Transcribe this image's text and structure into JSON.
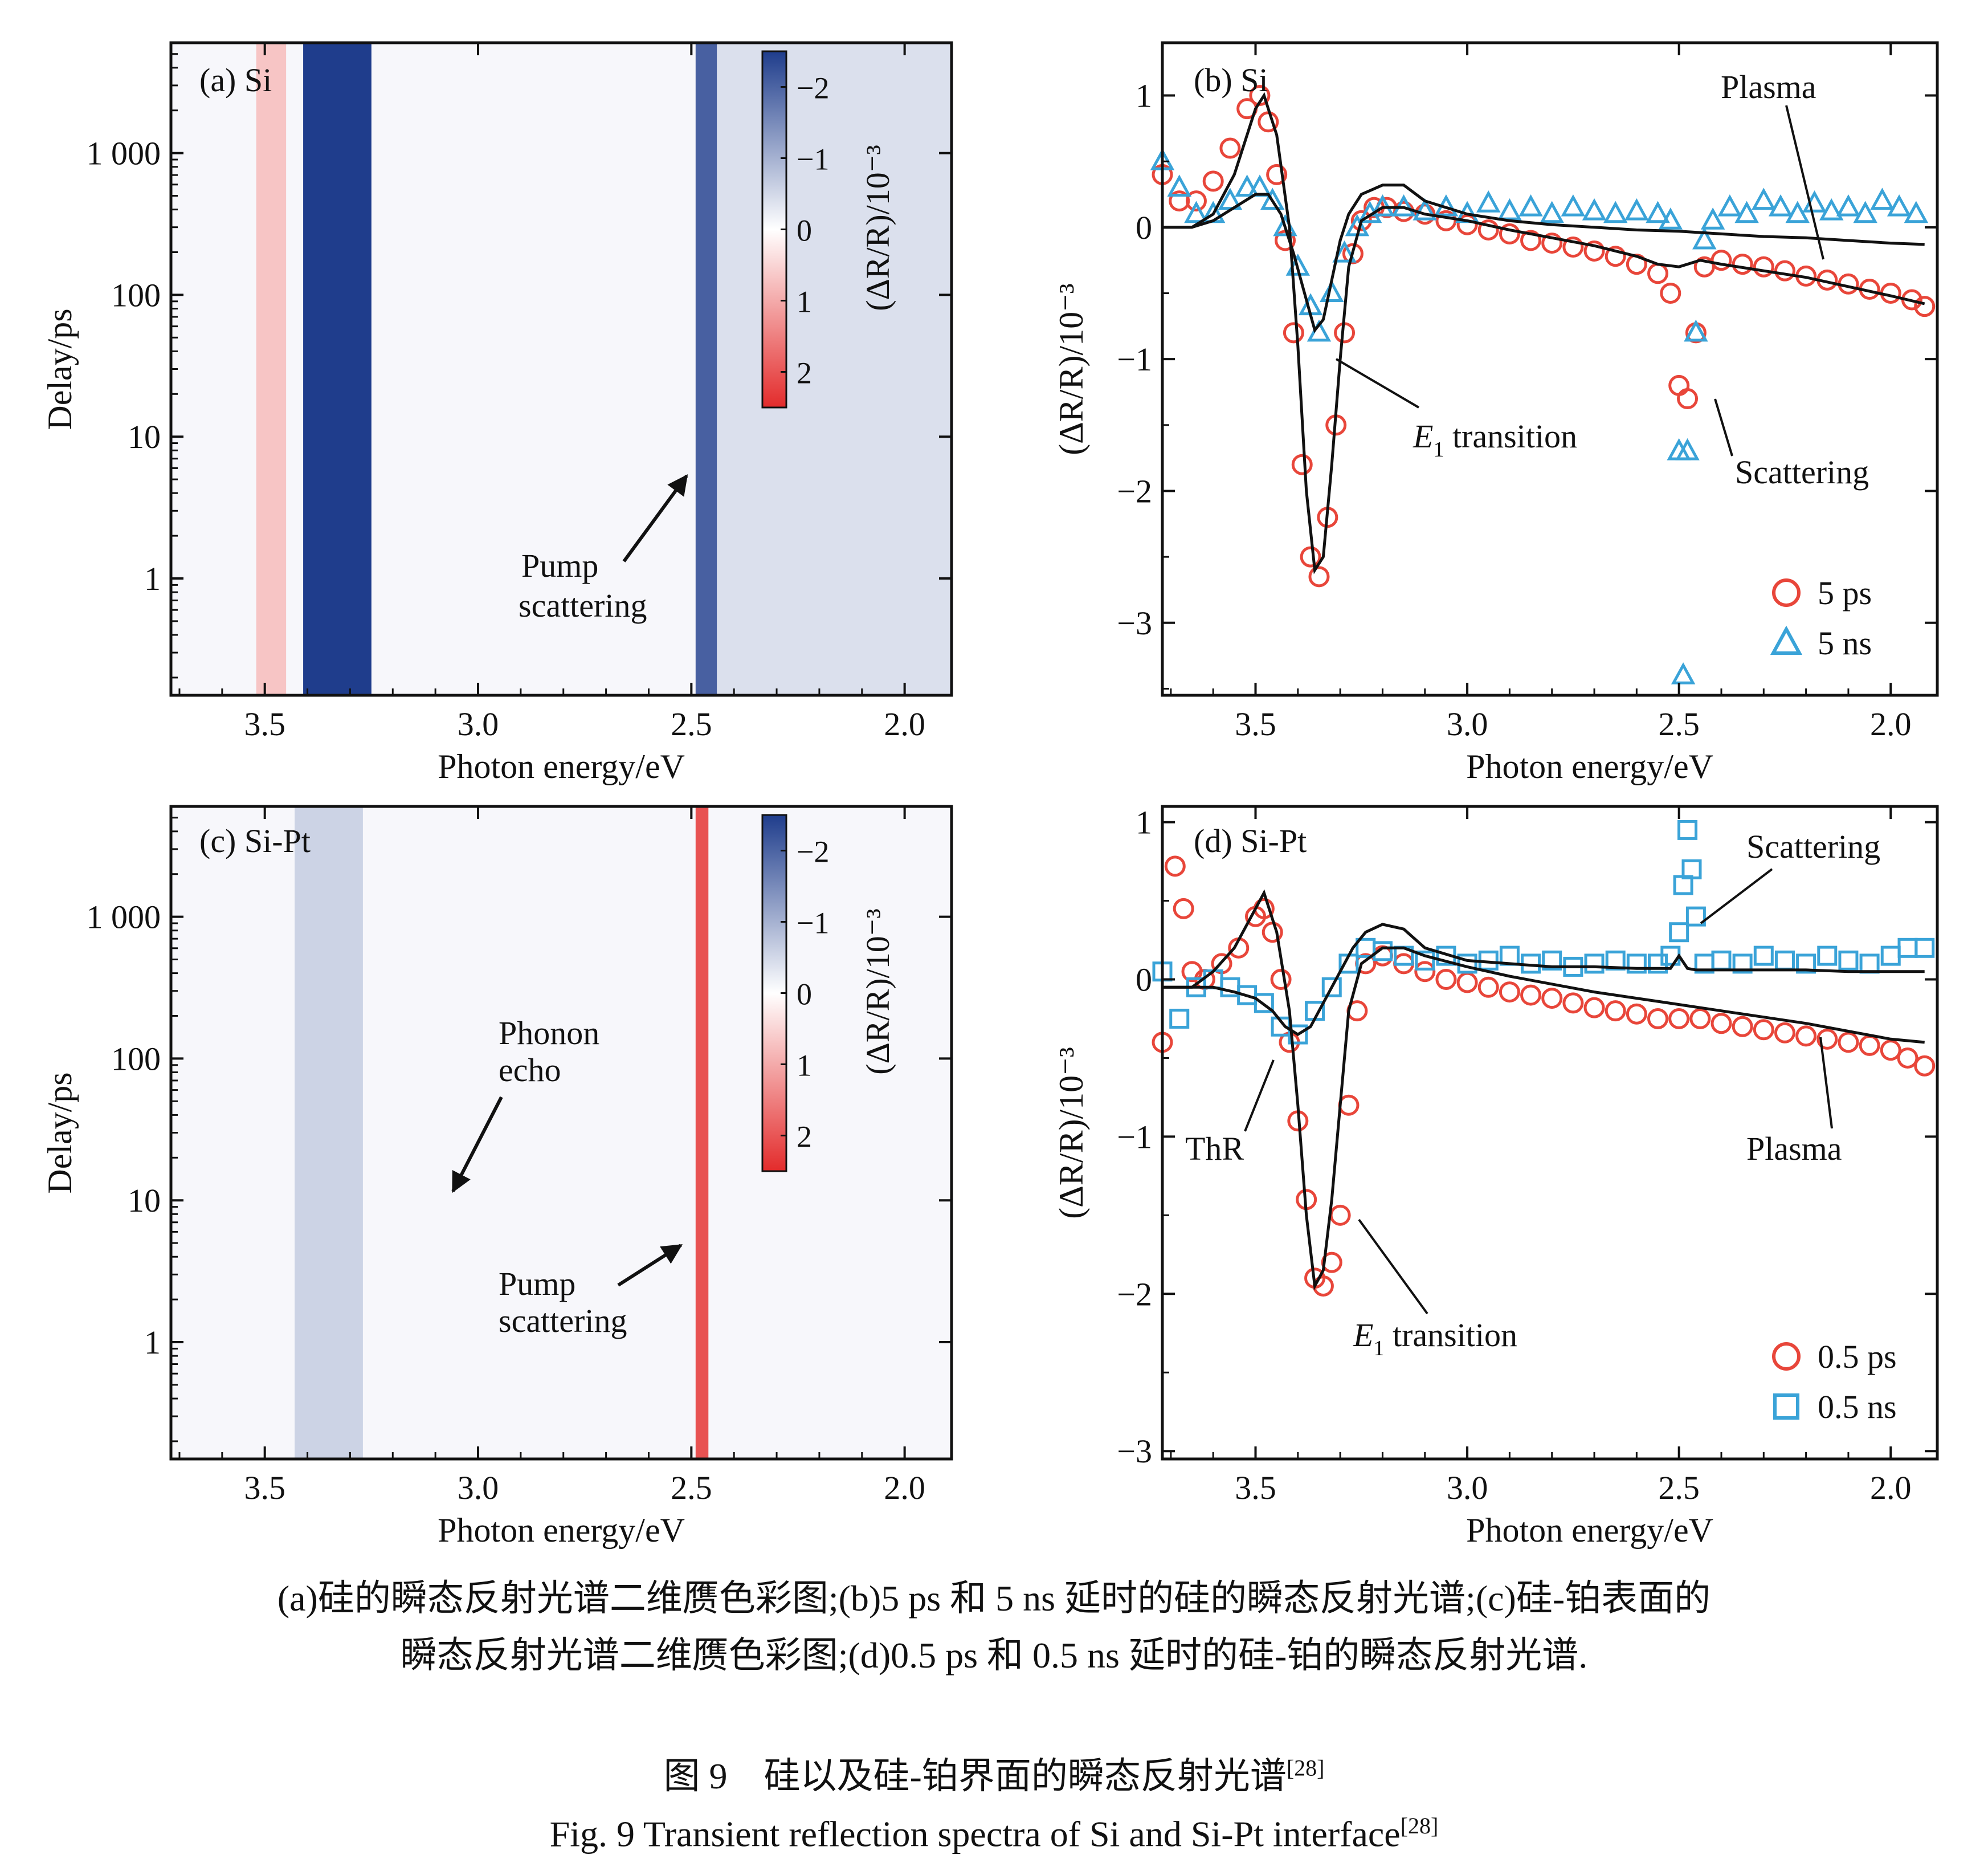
{
  "chart_data": [
    {
      "id": "a",
      "type": "heatmap",
      "panel_label": "(a) Si",
      "xlabel": "Photon energy/eV",
      "ylabel": "Delay/ps",
      "xlim": [
        3.72,
        1.89
      ],
      "x_reversed": true,
      "ylim": [
        0.15,
        6000
      ],
      "y_scale": "log",
      "x_ticks": [
        "3.5",
        "3.0",
        "2.5",
        "2.0"
      ],
      "x_tick_values": [
        3.5,
        3.0,
        2.5,
        2.0
      ],
      "y_ticks": [
        "1",
        "10",
        "100",
        "1 000"
      ],
      "y_tick_values": [
        1,
        10,
        100,
        1000
      ],
      "colorbar": {
        "label": "(ΔR/R)/10⁻³",
        "tick_labels": [
          "−2",
          "−1",
          "0",
          "1",
          "2"
        ],
        "tick_values": [
          -2,
          -1,
          0,
          1,
          2
        ],
        "negative_color": "#1f3d8c",
        "positive_color": "#e32b2b"
      },
      "bands": [
        {
          "x_from": 3.52,
          "x_to": 3.45,
          "value": 0.6
        },
        {
          "x_from": 3.41,
          "x_to": 3.25,
          "value": -2.2
        },
        {
          "x_from": 2.49,
          "x_to": 2.44,
          "value": -1.8
        },
        {
          "x_from": 2.44,
          "x_to": 1.89,
          "value": -0.35
        }
      ],
      "annotations": [
        {
          "text": "Pump",
          "text2": "scattering"
        }
      ]
    },
    {
      "id": "b",
      "type": "scatter",
      "panel_label": "(b) Si",
      "xlabel": "Photon energy/eV",
      "ylabel": "(ΔR/R)/10⁻³",
      "xlim": [
        3.72,
        1.89
      ],
      "x_reversed": true,
      "ylim": [
        -3.55,
        1.4
      ],
      "x_ticks": [
        "3.5",
        "3.0",
        "2.5",
        "2.0"
      ],
      "x_tick_values": [
        3.5,
        3.0,
        2.5,
        2.0
      ],
      "y_ticks": [
        "1",
        "0",
        "−1",
        "−2",
        "−3"
      ],
      "y_tick_values": [
        1,
        0,
        -1,
        -2,
        -3
      ],
      "legend_position": "bottom-right",
      "series": [
        {
          "name": "5 ps",
          "marker": "circle",
          "color": "#e8463a",
          "x": [
            3.72,
            3.68,
            3.64,
            3.6,
            3.56,
            3.52,
            3.49,
            3.47,
            3.45,
            3.43,
            3.41,
            3.39,
            3.37,
            3.35,
            3.33,
            3.31,
            3.29,
            3.27,
            3.25,
            3.22,
            3.19,
            3.15,
            3.1,
            3.05,
            3.0,
            2.95,
            2.9,
            2.85,
            2.8,
            2.75,
            2.7,
            2.65,
            2.6,
            2.55,
            2.52,
            2.5,
            2.48,
            2.46,
            2.44,
            2.4,
            2.35,
            2.3,
            2.25,
            2.2,
            2.15,
            2.1,
            2.05,
            2.0,
            1.95,
            1.92
          ],
          "y": [
            0.4,
            0.2,
            0.2,
            0.35,
            0.6,
            0.9,
            1.0,
            0.8,
            0.4,
            -0.1,
            -0.8,
            -1.8,
            -2.5,
            -2.65,
            -2.2,
            -1.5,
            -0.8,
            -0.2,
            0.05,
            0.15,
            0.15,
            0.12,
            0.1,
            0.05,
            0.02,
            -0.02,
            -0.05,
            -0.1,
            -0.12,
            -0.15,
            -0.18,
            -0.22,
            -0.28,
            -0.35,
            -0.5,
            -1.2,
            -1.3,
            -0.8,
            -0.3,
            -0.25,
            -0.28,
            -0.3,
            -0.33,
            -0.37,
            -0.4,
            -0.43,
            -0.47,
            -0.5,
            -0.55,
            -0.6
          ]
        },
        {
          "name": "5 ns",
          "marker": "triangle",
          "color": "#3aa3d8",
          "x": [
            3.72,
            3.68,
            3.64,
            3.6,
            3.56,
            3.52,
            3.49,
            3.46,
            3.43,
            3.4,
            3.37,
            3.35,
            3.32,
            3.29,
            3.26,
            3.23,
            3.2,
            3.15,
            3.1,
            3.05,
            3.0,
            2.95,
            2.9,
            2.85,
            2.8,
            2.75,
            2.7,
            2.65,
            2.6,
            2.55,
            2.52,
            2.5,
            2.49,
            2.48,
            2.46,
            2.44,
            2.42,
            2.38,
            2.34,
            2.3,
            2.26,
            2.22,
            2.18,
            2.14,
            2.1,
            2.06,
            2.02,
            1.98,
            1.94
          ],
          "y": [
            0.5,
            0.3,
            0.1,
            0.1,
            0.2,
            0.3,
            0.3,
            0.2,
            0.0,
            -0.3,
            -0.6,
            -0.8,
            -0.5,
            -0.2,
            0.0,
            0.1,
            0.15,
            0.15,
            0.12,
            0.15,
            0.1,
            0.18,
            0.12,
            0.15,
            0.1,
            0.15,
            0.12,
            0.1,
            0.12,
            0.1,
            0.05,
            -1.7,
            -3.4,
            -1.7,
            -0.8,
            -0.1,
            0.05,
            0.15,
            0.1,
            0.2,
            0.15,
            0.1,
            0.18,
            0.12,
            0.15,
            0.1,
            0.2,
            0.15,
            0.1
          ]
        },
        {
          "name": "",
          "type": "line",
          "color": "#111",
          "x": [
            3.72,
            3.65,
            3.6,
            3.55,
            3.5,
            3.48,
            3.45,
            3.42,
            3.4,
            3.38,
            3.36,
            3.34,
            3.32,
            3.3,
            3.28,
            3.25,
            3.2,
            3.15,
            3.1,
            3.0,
            2.9,
            2.8,
            2.7,
            2.6,
            2.55,
            2.5,
            2.45,
            2.4,
            2.3,
            2.2,
            2.1,
            2.0,
            1.92
          ],
          "y": [
            0.0,
            0.0,
            0.1,
            0.4,
            0.9,
            1.0,
            0.7,
            0.0,
            -0.9,
            -2.0,
            -2.6,
            -2.5,
            -1.8,
            -1.0,
            -0.3,
            0.05,
            0.15,
            0.15,
            0.1,
            0.05,
            -0.02,
            -0.08,
            -0.14,
            -0.22,
            -0.28,
            -0.3,
            -0.25,
            -0.28,
            -0.33,
            -0.38,
            -0.45,
            -0.52,
            -0.58
          ]
        },
        {
          "name": "",
          "type": "line",
          "color": "#111",
          "x": [
            3.72,
            3.65,
            3.6,
            3.55,
            3.5,
            3.47,
            3.44,
            3.41,
            3.38,
            3.36,
            3.34,
            3.32,
            3.3,
            3.28,
            3.25,
            3.2,
            3.15,
            3.1,
            3.0,
            2.9,
            2.8,
            2.7,
            2.6,
            2.5,
            2.4,
            2.3,
            2.2,
            2.1,
            2.0,
            1.92
          ],
          "y": [
            0.0,
            0.0,
            0.05,
            0.15,
            0.25,
            0.25,
            0.1,
            -0.2,
            -0.55,
            -0.78,
            -0.7,
            -0.4,
            -0.1,
            0.1,
            0.25,
            0.32,
            0.32,
            0.2,
            0.1,
            0.05,
            0.02,
            0.0,
            -0.02,
            -0.03,
            -0.05,
            -0.07,
            -0.08,
            -0.1,
            -0.12,
            -0.13
          ]
        }
      ],
      "annotations": [
        {
          "text": "Plasma"
        },
        {
          "text": "E",
          "sub": "1",
          "text2": " transition"
        },
        {
          "text": "Scattering"
        }
      ]
    },
    {
      "id": "c",
      "type": "heatmap",
      "panel_label": "(c) Si-Pt",
      "xlabel": "Photon energy/eV",
      "ylabel": "Delay/ps",
      "xlim": [
        3.72,
        1.89
      ],
      "x_reversed": true,
      "ylim": [
        0.15,
        6000
      ],
      "y_scale": "log",
      "x_ticks": [
        "3.5",
        "3.0",
        "2.5",
        "2.0"
      ],
      "x_tick_values": [
        3.5,
        3.0,
        2.5,
        2.0
      ],
      "y_ticks": [
        "1",
        "10",
        "100",
        "1 000"
      ],
      "y_tick_values": [
        1,
        10,
        100,
        1000
      ],
      "colorbar": {
        "label": "(ΔR/R)/10⁻³",
        "tick_labels": [
          "−2",
          "−1",
          "0",
          "1",
          "2"
        ],
        "tick_values": [
          -2,
          -1,
          0,
          1,
          2
        ],
        "negative_color": "#1f3d8c",
        "positive_color": "#e32b2b"
      },
      "bands": [
        {
          "x_from": 3.43,
          "x_to": 3.27,
          "value": -0.5
        },
        {
          "x_from": 2.49,
          "x_to": 2.46,
          "value": 1.8
        }
      ],
      "annotations": [
        {
          "text": "Phonon",
          "text2": "echo"
        },
        {
          "text": "Pump",
          "text2": "scattering"
        }
      ]
    },
    {
      "id": "d",
      "type": "scatter",
      "panel_label": "(d) Si-Pt",
      "xlabel": "Photon energy/eV",
      "ylabel": "(ΔR/R)/10⁻³",
      "xlim": [
        3.72,
        1.89
      ],
      "x_reversed": true,
      "ylim": [
        -3.05,
        1.1
      ],
      "x_ticks": [
        "3.5",
        "3.0",
        "2.5",
        "2.0"
      ],
      "x_tick_values": [
        3.5,
        3.0,
        2.5,
        2.0
      ],
      "y_ticks": [
        "1",
        "0",
        "−1",
        "−2",
        "−3"
      ],
      "y_tick_values": [
        1,
        0,
        -1,
        -2,
        -3
      ],
      "legend_position": "bottom-right",
      "series": [
        {
          "name": "0.5 ps",
          "marker": "circle",
          "color": "#e8463a",
          "x": [
            3.72,
            3.69,
            3.67,
            3.65,
            3.62,
            3.58,
            3.54,
            3.5,
            3.48,
            3.46,
            3.44,
            3.42,
            3.4,
            3.38,
            3.36,
            3.34,
            3.32,
            3.3,
            3.28,
            3.26,
            3.24,
            3.2,
            3.15,
            3.1,
            3.05,
            3.0,
            2.95,
            2.9,
            2.85,
            2.8,
            2.75,
            2.7,
            2.65,
            2.6,
            2.55,
            2.5,
            2.45,
            2.4,
            2.35,
            2.3,
            2.25,
            2.2,
            2.15,
            2.1,
            2.05,
            2.0,
            1.96,
            1.92
          ],
          "y": [
            -0.4,
            0.72,
            0.45,
            0.05,
            0.0,
            0.1,
            0.2,
            0.4,
            0.45,
            0.3,
            0.0,
            -0.4,
            -0.9,
            -1.4,
            -1.9,
            -1.95,
            -1.8,
            -1.5,
            -0.8,
            -0.2,
            0.1,
            0.15,
            0.1,
            0.05,
            0.0,
            -0.02,
            -0.05,
            -0.08,
            -0.1,
            -0.12,
            -0.15,
            -0.18,
            -0.2,
            -0.22,
            -0.25,
            -0.25,
            -0.25,
            -0.28,
            -0.3,
            -0.32,
            -0.34,
            -0.36,
            -0.38,
            -0.4,
            -0.42,
            -0.45,
            -0.5,
            -0.55
          ]
        },
        {
          "name": "0.5 ns",
          "marker": "square",
          "color": "#3aa3d8",
          "x": [
            3.72,
            3.68,
            3.64,
            3.6,
            3.56,
            3.52,
            3.48,
            3.44,
            3.4,
            3.36,
            3.32,
            3.28,
            3.24,
            3.2,
            3.15,
            3.1,
            3.05,
            3.0,
            2.95,
            2.9,
            2.85,
            2.8,
            2.75,
            2.7,
            2.65,
            2.6,
            2.55,
            2.52,
            2.5,
            2.49,
            2.48,
            2.47,
            2.46,
            2.44,
            2.4,
            2.35,
            2.3,
            2.25,
            2.2,
            2.15,
            2.1,
            2.05,
            2.0,
            1.96,
            1.92
          ],
          "y": [
            0.05,
            -0.25,
            -0.05,
            0.0,
            -0.05,
            -0.1,
            -0.15,
            -0.3,
            -0.35,
            -0.2,
            -0.05,
            0.1,
            0.2,
            0.18,
            0.15,
            0.12,
            0.15,
            0.1,
            0.12,
            0.15,
            0.1,
            0.12,
            0.08,
            0.1,
            0.12,
            0.1,
            0.1,
            0.15,
            0.3,
            0.6,
            0.95,
            0.7,
            0.4,
            0.1,
            0.12,
            0.1,
            0.15,
            0.12,
            0.1,
            0.15,
            0.12,
            0.1,
            0.15,
            0.2,
            0.2
          ]
        },
        {
          "name": "",
          "type": "line",
          "color": "#111",
          "x": [
            3.72,
            3.65,
            3.6,
            3.55,
            3.5,
            3.48,
            3.45,
            3.42,
            3.4,
            3.38,
            3.36,
            3.34,
            3.32,
            3.3,
            3.28,
            3.25,
            3.2,
            3.15,
            3.1,
            3.0,
            2.9,
            2.8,
            2.7,
            2.6,
            2.5,
            2.4,
            2.3,
            2.2,
            2.1,
            2.0,
            1.92
          ],
          "y": [
            -0.05,
            -0.05,
            0.05,
            0.2,
            0.45,
            0.55,
            0.3,
            -0.2,
            -0.8,
            -1.5,
            -1.95,
            -1.85,
            -1.4,
            -0.8,
            -0.2,
            0.1,
            0.2,
            0.2,
            0.15,
            0.08,
            0.02,
            -0.03,
            -0.08,
            -0.12,
            -0.16,
            -0.2,
            -0.24,
            -0.28,
            -0.33,
            -0.38,
            -0.4
          ]
        },
        {
          "name": "",
          "type": "line",
          "color": "#111",
          "x": [
            3.72,
            3.65,
            3.6,
            3.55,
            3.5,
            3.46,
            3.43,
            3.4,
            3.37,
            3.34,
            3.3,
            3.27,
            3.24,
            3.2,
            3.15,
            3.1,
            3.0,
            2.9,
            2.8,
            2.7,
            2.6,
            2.52,
            2.5,
            2.48,
            2.46,
            2.4,
            2.3,
            2.2,
            2.1,
            2.0,
            1.92
          ],
          "y": [
            -0.05,
            -0.05,
            -0.05,
            -0.08,
            -0.12,
            -0.2,
            -0.3,
            -0.35,
            -0.3,
            -0.15,
            0.05,
            0.2,
            0.3,
            0.35,
            0.32,
            0.2,
            0.12,
            0.1,
            0.08,
            0.08,
            0.07,
            0.07,
            0.15,
            0.07,
            0.06,
            0.06,
            0.06,
            0.06,
            0.05,
            0.05,
            0.05
          ]
        }
      ],
      "annotations": [
        {
          "text": "Scattering"
        },
        {
          "text": "ThR"
        },
        {
          "text": "Plasma"
        },
        {
          "text": "E",
          "sub": "1",
          "text2": " transition"
        }
      ]
    }
  ],
  "caption": {
    "zh_line1": "(a)硅的瞬态反射光谱二维赝色彩图;(b)5 ps 和 5 ns 延时的硅的瞬态反射光谱;(c)硅-铂表面的",
    "zh_line2": "瞬态反射光谱二维赝色彩图;(d)0.5 ps 和 0.5 ns 延时的硅-铂的瞬态反射光谱.",
    "zh_title": "图 9　硅以及硅-铂界面的瞬态反射光谱",
    "en_title": "Fig. 9  Transient reflection spectra of Si and Si-Pt interface",
    "ref": "[28]"
  }
}
